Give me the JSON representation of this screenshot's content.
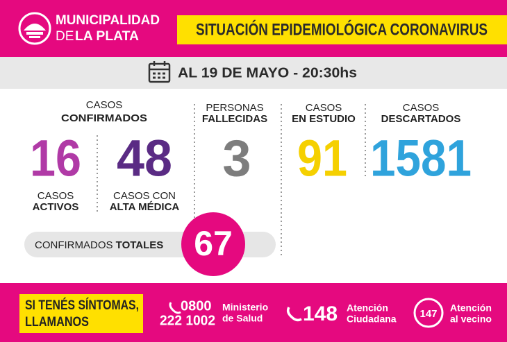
{
  "header": {
    "org_line1": "MUNICIPALIDAD",
    "org_line2_prefix": "DE",
    "org_line2_bold": "LA PLATA",
    "title": "SITUACIÓN EPIDEMIOLÓGICA CORONAVIRUS"
  },
  "date": "AL 19 DE MAYO - 20:30hs",
  "stats": {
    "confirmed_heading": [
      "CASOS",
      "CONFIRMADOS"
    ],
    "active": {
      "value": 16,
      "label": [
        "CASOS",
        "ACTIVOS"
      ]
    },
    "recovered": {
      "value": 48,
      "label": [
        "CASOS CON",
        "ALTA MÉDICA"
      ]
    },
    "deceased": {
      "value": 3,
      "label": [
        "PERSONAS",
        "FALLECIDAS"
      ]
    },
    "under_study": {
      "value": 91,
      "label": [
        "CASOS",
        "EN ESTUDIO"
      ]
    },
    "discarded": {
      "value": 1581,
      "label": [
        "CASOS",
        "DESCARTADOS"
      ]
    }
  },
  "totals": {
    "label": "CONFIRMADOS",
    "label_bold": "TOTALES",
    "value": 67
  },
  "footer": {
    "callout": [
      "SI TENÉS SÍNTOMAS,",
      "LLAMANOS"
    ],
    "contacts": [
      {
        "number": [
          "0800",
          "222 1002"
        ],
        "label": [
          "Ministerio",
          "de Salud"
        ]
      },
      {
        "number": "148",
        "label": [
          "Atención",
          "Ciudadana"
        ]
      },
      {
        "number": "147",
        "label": [
          "Atención",
          "al vecino"
        ]
      }
    ]
  }
}
